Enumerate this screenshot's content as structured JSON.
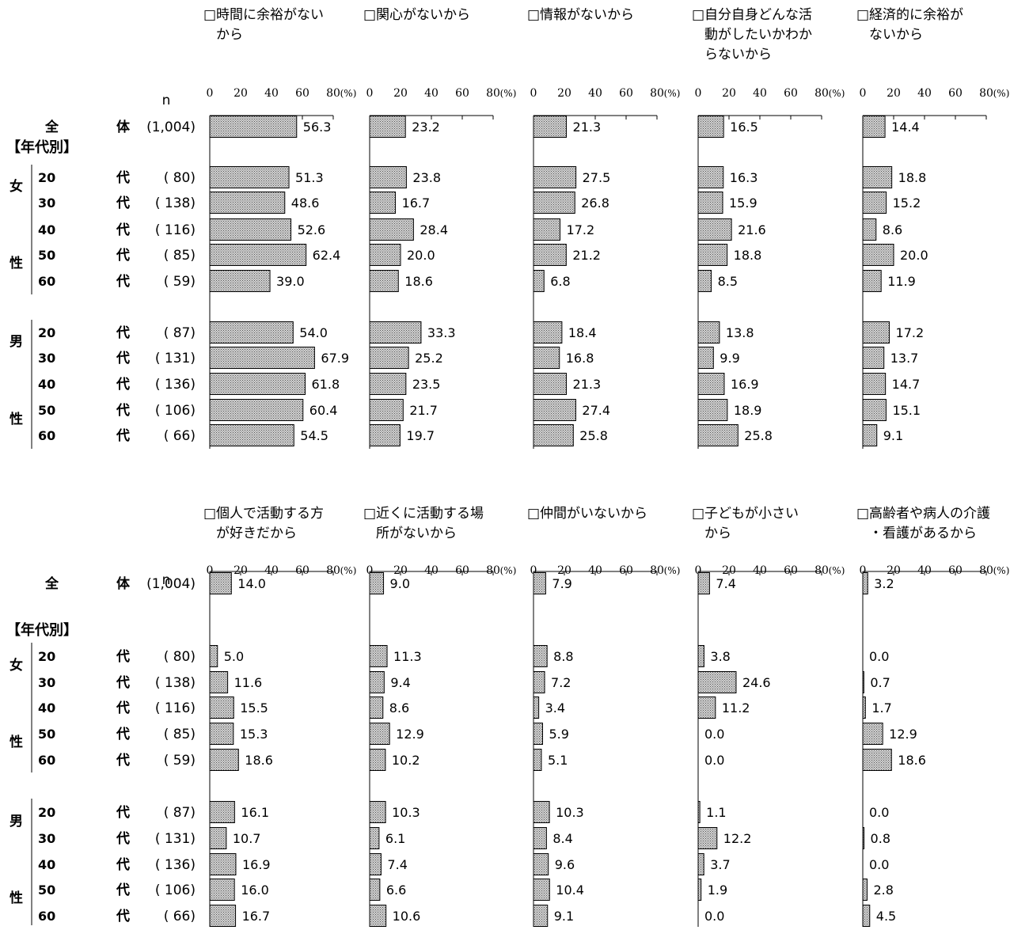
{
  "chart_data": {
    "type": "bar",
    "n_header": "n",
    "unit": "(%)",
    "xticks": [
      "0",
      "20",
      "40",
      "60",
      "80"
    ],
    "xlim": [
      0,
      80
    ],
    "rows": [
      {
        "label": "全　　　　体",
        "n": "(1,004)"
      },
      {
        "label": "20　　　代",
        "n": "(　80)"
      },
      {
        "label": "30　　　代",
        "n": "(　138)"
      },
      {
        "label": "40　　　代",
        "n": "(　116)"
      },
      {
        "label": "50　　　代",
        "n": "(　85)"
      },
      {
        "label": "60　　　代",
        "n": "(　59)"
      },
      {
        "label": "20　　　代",
        "n": "(　87)"
      },
      {
        "label": "30　　　代",
        "n": "(　131)"
      },
      {
        "label": "40　　　代",
        "n": "(　136)"
      },
      {
        "label": "50　　　代",
        "n": "(　106)"
      },
      {
        "label": "60　　　代",
        "n": "(　66)"
      }
    ],
    "group_header": "【年代別】",
    "groups": [
      {
        "name_top": "女",
        "name_bottom": "性"
      },
      {
        "name_top": "男",
        "name_bottom": "性"
      }
    ],
    "panels": [
      {
        "title": "□時間に余裕がない　から",
        "values": [
          56.3,
          51.3,
          48.6,
          52.6,
          62.4,
          39.0,
          54.0,
          67.9,
          61.8,
          60.4,
          54.5
        ],
        "labels": [
          "56.3",
          "51.3",
          "48.6",
          "52.6",
          "62.4",
          "39.0",
          "54.0",
          "67.9",
          "61.8",
          "60.4",
          "54.5"
        ]
      },
      {
        "title": "□関心がないから",
        "values": [
          23.2,
          23.8,
          16.7,
          28.4,
          20.0,
          18.6,
          33.3,
          25.2,
          23.5,
          21.7,
          19.7
        ],
        "labels": [
          "23.2",
          "23.8",
          "16.7",
          "28.4",
          "20.0",
          "18.6",
          "33.3",
          "25.2",
          "23.5",
          "21.7",
          "19.7"
        ]
      },
      {
        "title": "□情報がないから",
        "values": [
          21.3,
          27.5,
          26.8,
          17.2,
          21.2,
          6.8,
          18.4,
          16.8,
          21.3,
          27.4,
          25.8
        ],
        "labels": [
          "21.3",
          "27.5",
          "26.8",
          "17.2",
          "21.2",
          "6.8",
          "18.4",
          "16.8",
          "21.3",
          "27.4",
          "25.8"
        ]
      },
      {
        "title": "□自分自身どんな活　動がしたいかわか　らないから",
        "values": [
          16.5,
          16.3,
          15.9,
          21.6,
          18.8,
          8.5,
          13.8,
          9.9,
          16.9,
          18.9,
          25.8
        ],
        "labels": [
          "16.5",
          "16.3",
          "15.9",
          "21.6",
          "18.8",
          "8.5",
          "13.8",
          "9.9",
          "16.9",
          "18.9",
          "25.8"
        ]
      },
      {
        "title": "□経済的に余裕が　ないから",
        "values": [
          14.4,
          18.8,
          15.2,
          8.6,
          20.0,
          11.9,
          17.2,
          13.7,
          14.7,
          15.1,
          9.1
        ],
        "labels": [
          "14.4",
          "18.8",
          "15.2",
          "8.6",
          "20.0",
          "11.9",
          "17.2",
          "13.7",
          "14.7",
          "15.1",
          "9.1"
        ]
      },
      {
        "title": "□個人で活動する方　が好きだから",
        "values": [
          14.0,
          5.0,
          11.6,
          15.5,
          15.3,
          18.6,
          16.1,
          10.7,
          16.9,
          16.0,
          16.7
        ],
        "labels": [
          "14.0",
          "5.0",
          "11.6",
          "15.5",
          "15.3",
          "18.6",
          "16.1",
          "10.7",
          "16.9",
          "16.0",
          "16.7"
        ]
      },
      {
        "title": "□近くに活動する場　所がないから",
        "values": [
          9.0,
          11.3,
          9.4,
          8.6,
          12.9,
          10.2,
          10.3,
          6.1,
          7.4,
          6.6,
          10.6
        ],
        "labels": [
          "9.0",
          "11.3",
          "9.4",
          "8.6",
          "12.9",
          "10.2",
          "10.3",
          "6.1",
          "7.4",
          "6.6",
          "10.6"
        ]
      },
      {
        "title": "□仲間がいないから",
        "values": [
          7.9,
          8.8,
          7.2,
          3.4,
          5.9,
          5.1,
          10.3,
          8.4,
          9.6,
          10.4,
          9.1
        ],
        "labels": [
          "7.9",
          "8.8",
          "7.2",
          "3.4",
          "5.9",
          "5.1",
          "10.3",
          "8.4",
          "9.6",
          "10.4",
          "9.1"
        ]
      },
      {
        "title": "□子どもが小さい　から",
        "values": [
          7.4,
          3.8,
          24.6,
          11.2,
          0.0,
          0.0,
          1.1,
          12.2,
          3.7,
          1.9,
          0.0
        ],
        "labels": [
          "7.4",
          "3.8",
          "24.6",
          "11.2",
          "0.0",
          "0.0",
          "1.1",
          "12.2",
          "3.7",
          "1.9",
          "0.0"
        ]
      },
      {
        "title": "□高齢者や病人の介護　・看護があるから",
        "values": [
          3.2,
          0.0,
          0.7,
          1.7,
          12.9,
          18.6,
          0.0,
          0.8,
          0.0,
          2.8,
          4.5
        ],
        "labels": [
          "3.2",
          "0.0",
          "0.7",
          "1.7",
          "12.9",
          "18.6",
          "0.0",
          "0.8",
          "0.0",
          "2.8",
          "4.5"
        ]
      }
    ]
  }
}
